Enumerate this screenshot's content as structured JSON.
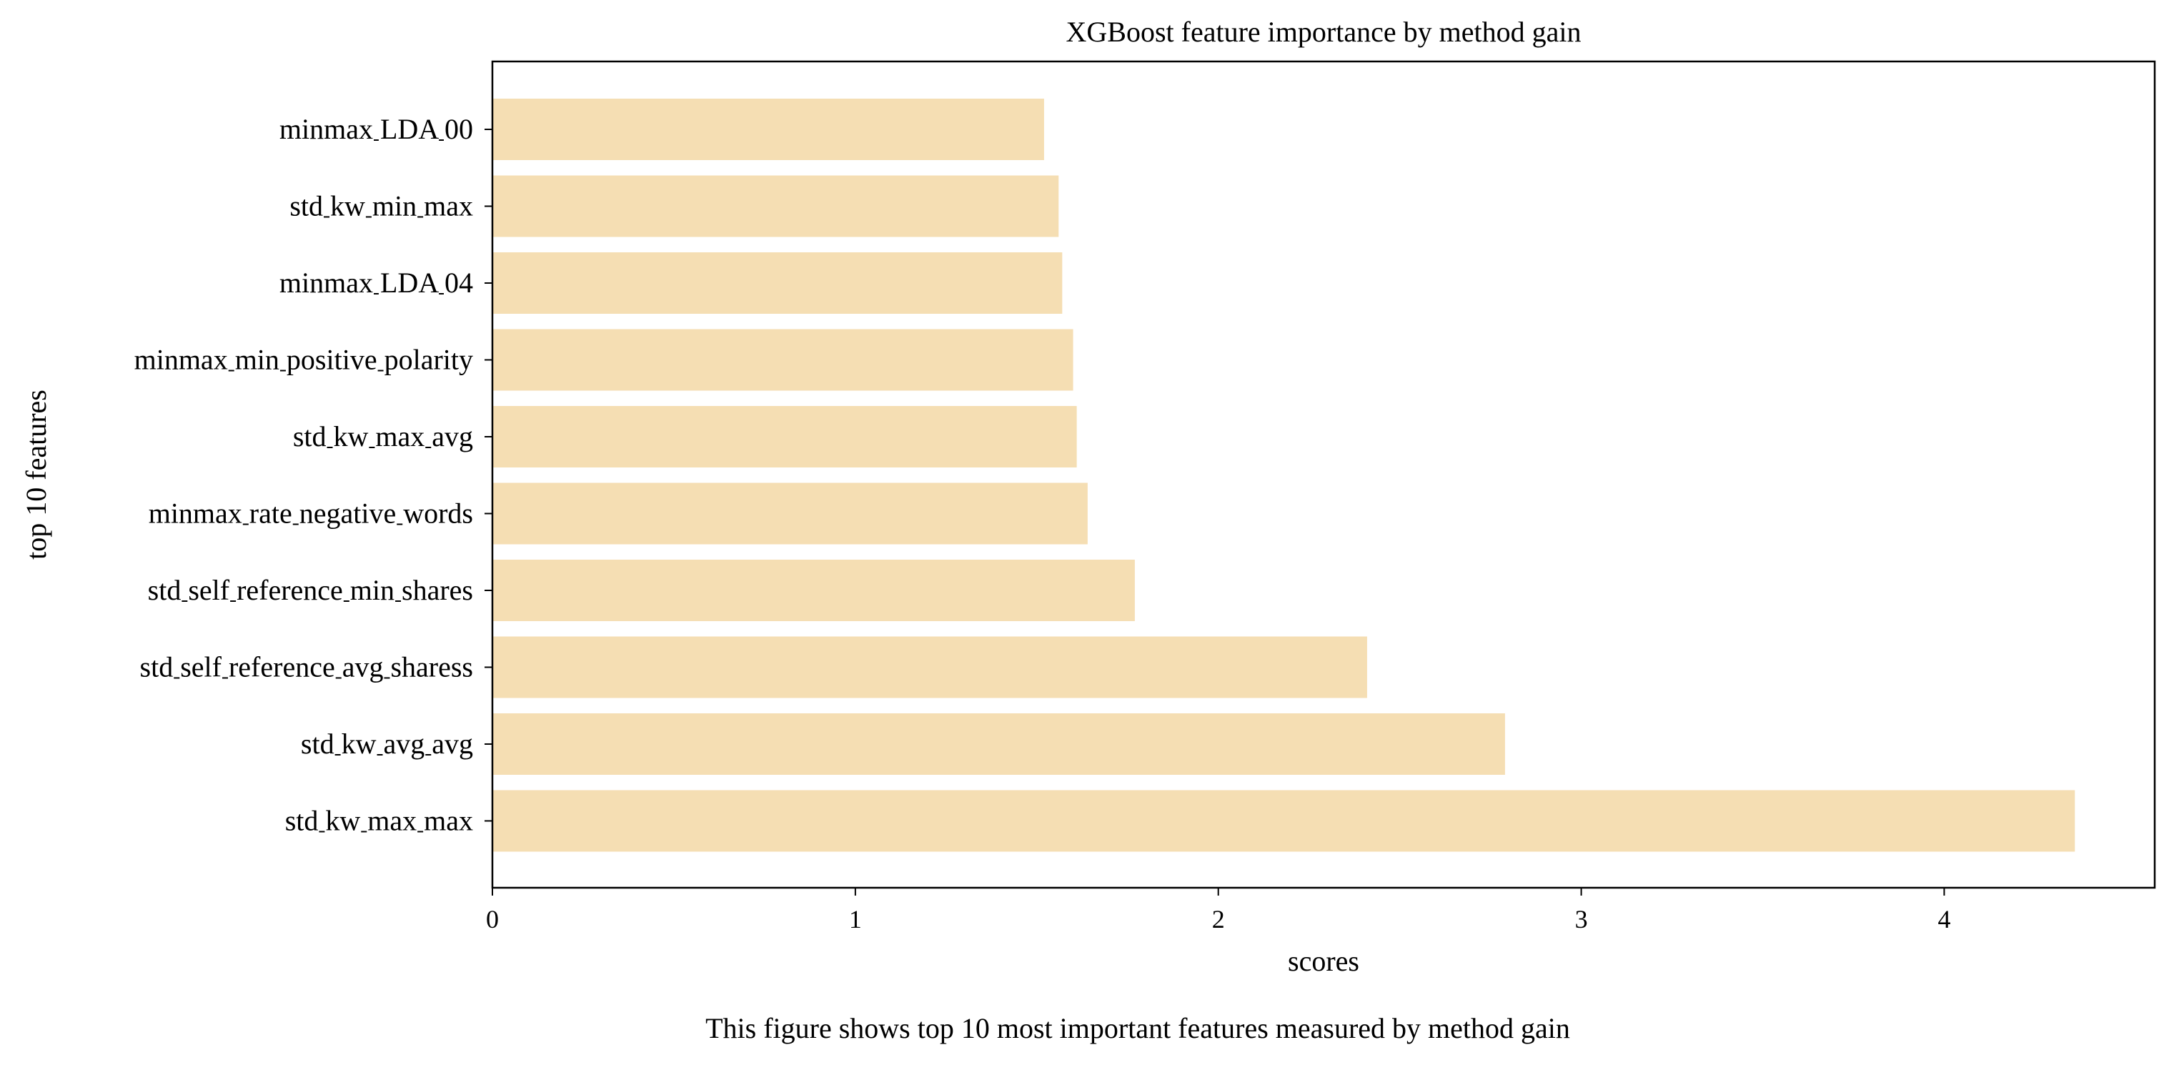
{
  "chart_data": {
    "type": "bar",
    "orientation": "horizontal",
    "title": "XGBoost feature importance by method gain",
    "xlabel": "scores",
    "ylabel": "top 10 features",
    "caption": "This figure shows top 10 most important features measured by method gain",
    "categories": [
      "minmax__LDA_00",
      "std__kw_min_max",
      "minmax__LDA_04",
      "minmax__min_positive_polarity",
      "std__kw_max_avg",
      "minmax__rate_negative_words",
      "std__self_reference_min_shares",
      "std__self_reference_avg_sharess",
      "std__kw_avg_avg",
      "std__kw_max_max"
    ],
    "category_labels": [
      "minmax LDA 00",
      "std kw min max",
      "minmax LDA 04",
      "minmax min positive polarity",
      "std kw max avg",
      "minmax rate negative words",
      "std self reference min shares",
      "std self reference avg sharess",
      "std kw avg avg",
      "std kw max max"
    ],
    "values": [
      1.52,
      1.56,
      1.57,
      1.6,
      1.61,
      1.64,
      1.77,
      2.41,
      2.79,
      4.36
    ],
    "xlim": [
      0,
      4.58
    ],
    "xticks": [
      0,
      1,
      2,
      3,
      4
    ],
    "xtick_labels": [
      "0",
      "1",
      "2",
      "3",
      "4"
    ],
    "grid": false,
    "bar_color": "#f5deb3"
  }
}
